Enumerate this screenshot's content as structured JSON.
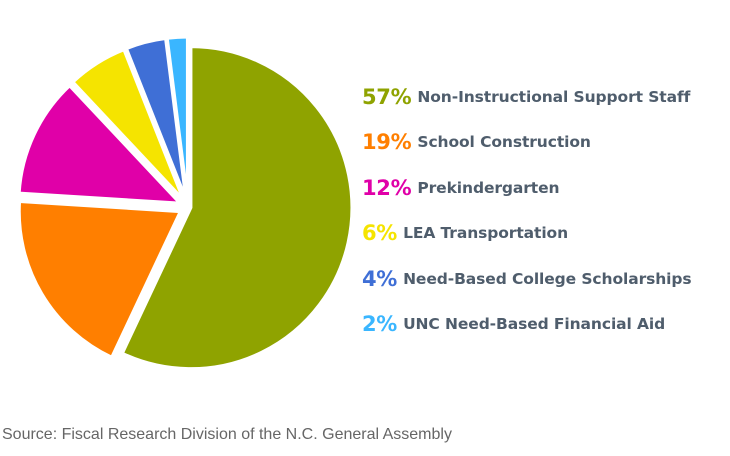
{
  "chart_data": {
    "type": "pie",
    "slices": [
      {
        "percent_label": "57%",
        "label": "Non-Instructional Support Staff",
        "value": 57,
        "color": "#8fa300"
      },
      {
        "percent_label": "19%",
        "label": "School Construction",
        "value": 19,
        "color": "#ff7f00"
      },
      {
        "percent_label": "12%",
        "label": "Prekindergarten",
        "value": 12,
        "color": "#e000a8"
      },
      {
        "percent_label": "6%",
        "label": "LEA Transportation",
        "value": 6,
        "color": "#f5e400"
      },
      {
        "percent_label": "4%",
        "label": "Need-Based College Scholarships",
        "value": 4,
        "color": "#3f6fd6"
      },
      {
        "percent_label": "2%",
        "label": "UNC Need-Based Financial Aid",
        "value": 2,
        "color": "#3ab6ff"
      }
    ],
    "legend_position": "right"
  },
  "source": "Source: Fiscal Research Division of the N.C. General Assembly"
}
